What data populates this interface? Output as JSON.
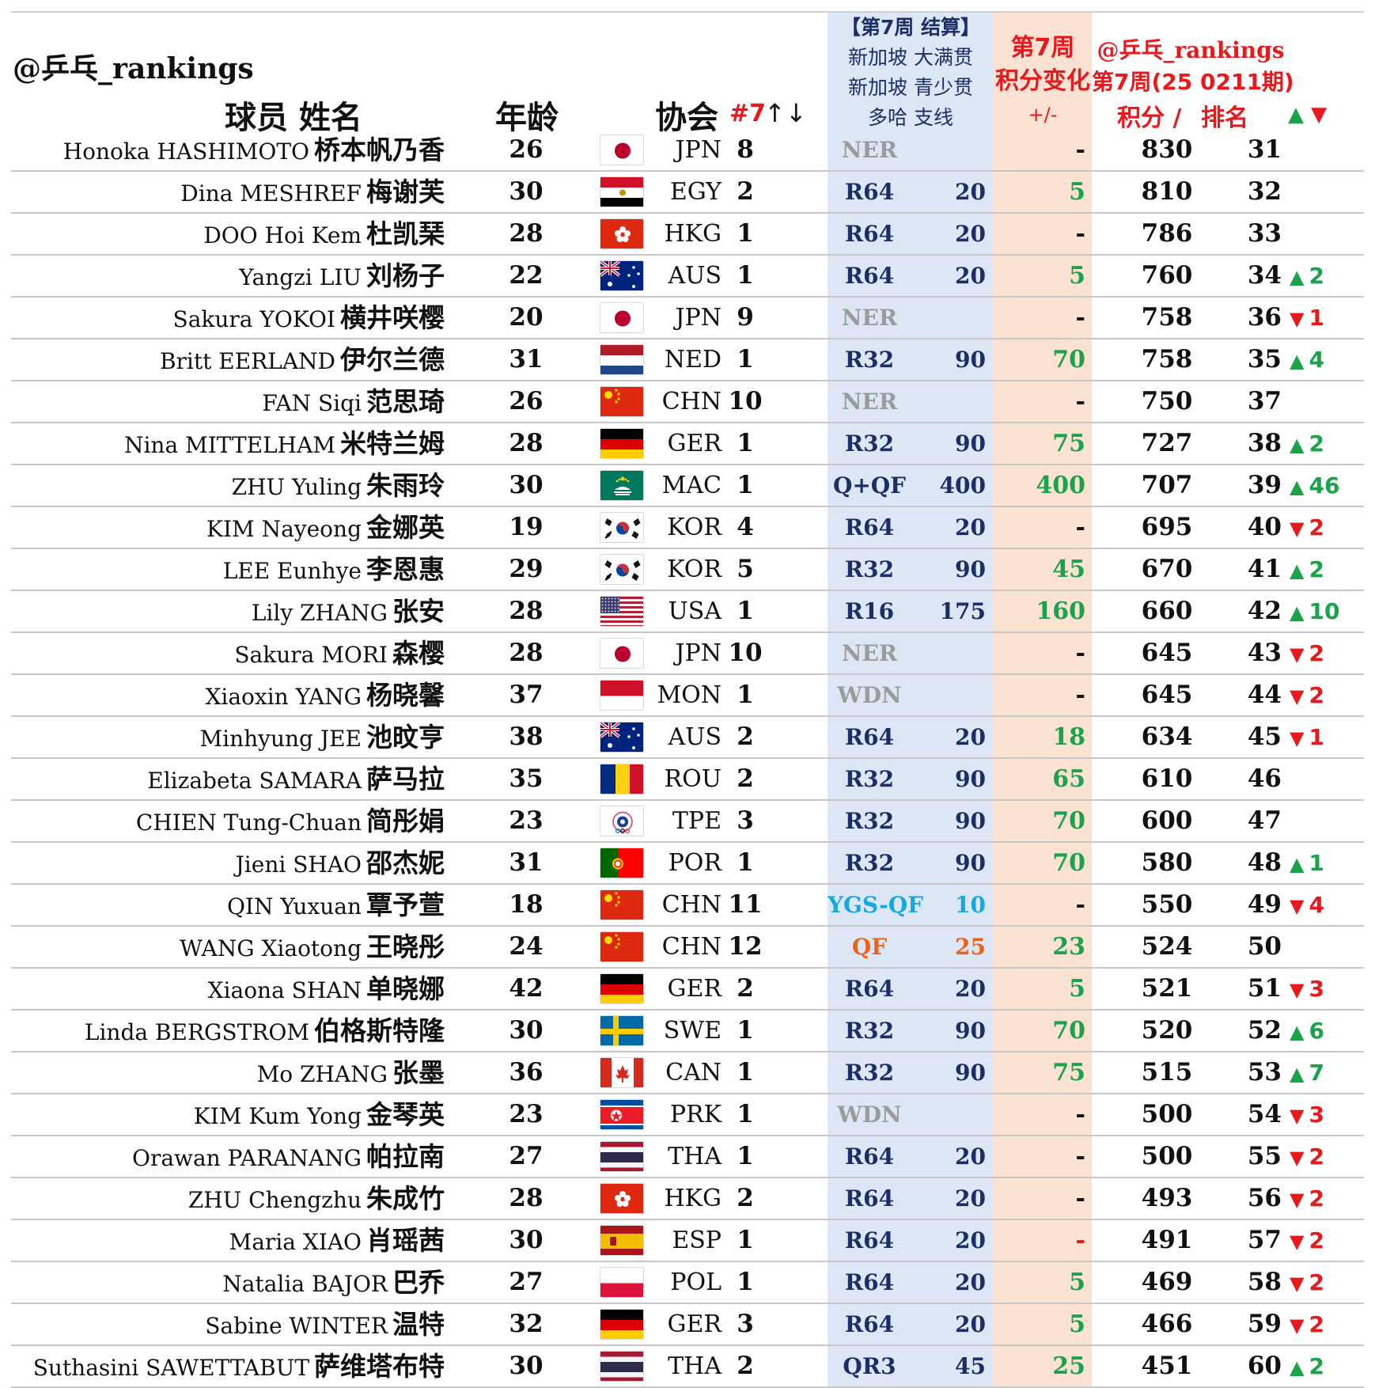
{
  "header": {
    "handle": "@乒乓_rankings",
    "player_col": "球员  姓名",
    "age_col": "年龄",
    "assoc_col": "协会",
    "assoc_rank_col": "#7",
    "assoc_rank_arrows": "↑↓",
    "event_line1": "【第7周 结算】",
    "event_line2": "新加坡 大满贯",
    "event_line3": "新加坡 青少贯",
    "event_line4": "多哈 支线",
    "change_line1": "第7周",
    "change_line2": "积分变化",
    "change_line3": "+/-",
    "rank_line1": "@乒乓_rankings",
    "rank_line2": "第7周(25 0211期)",
    "points_col": "积分 /",
    "rank_col": "排名",
    "up_symbol": "▲",
    "down_symbol": "▼"
  },
  "colors": {
    "up": "#1aa34a",
    "down": "#e8191c",
    "header_red": "#e8191c",
    "event_band": "#dde6f5",
    "change_band": "#fbe2d3"
  },
  "rows": [
    {
      "name_en": "Honoka HASHIMOTO",
      "name_zh": "桥本帆乃香",
      "age": "26",
      "flag": "JPN",
      "code": "JPN",
      "assoc_rank": "8",
      "round": "NER",
      "event_pts": "",
      "event_style": "grey",
      "change": "-",
      "change_style": "neutral",
      "points": "830",
      "rank": "31",
      "move_dir": "",
      "move": ""
    },
    {
      "name_en": "Dina MESHREF",
      "name_zh": "梅谢芙",
      "age": "30",
      "flag": "EGY",
      "code": "EGY",
      "assoc_rank": "2",
      "round": "R64",
      "event_pts": "20",
      "event_style": "normal",
      "change": "5",
      "change_style": "green",
      "points": "810",
      "rank": "32",
      "move_dir": "",
      "move": ""
    },
    {
      "name_en": "DOO Hoi Kem",
      "name_zh": "杜凯琹",
      "age": "28",
      "flag": "HKG",
      "code": "HKG",
      "assoc_rank": "1",
      "round": "R64",
      "event_pts": "20",
      "event_style": "normal",
      "change": "-",
      "change_style": "neutral",
      "points": "786",
      "rank": "33",
      "move_dir": "",
      "move": ""
    },
    {
      "name_en": "Yangzi LIU",
      "name_zh": "刘杨子",
      "age": "22",
      "flag": "AUS",
      "code": "AUS",
      "assoc_rank": "1",
      "round": "R64",
      "event_pts": "20",
      "event_style": "normal",
      "change": "5",
      "change_style": "green",
      "points": "760",
      "rank": "34",
      "move_dir": "up",
      "move": "2"
    },
    {
      "name_en": "Sakura YOKOI",
      "name_zh": "横井咲樱",
      "age": "20",
      "flag": "JPN",
      "code": "JPN",
      "assoc_rank": "9",
      "round": "NER",
      "event_pts": "",
      "event_style": "grey",
      "change": "-",
      "change_style": "neutral",
      "points": "758",
      "rank": "36",
      "move_dir": "down",
      "move": "1"
    },
    {
      "name_en": "Britt EERLAND",
      "name_zh": "伊尔兰德",
      "age": "31",
      "flag": "NED",
      "code": "NED",
      "assoc_rank": "1",
      "round": "R32",
      "event_pts": "90",
      "event_style": "normal",
      "change": "70",
      "change_style": "green",
      "points": "758",
      "rank": "35",
      "move_dir": "up",
      "move": "4"
    },
    {
      "name_en": "FAN Siqi",
      "name_zh": "范思琦",
      "age": "26",
      "flag": "CHN",
      "code": "CHN",
      "assoc_rank": "10",
      "round": "NER",
      "event_pts": "",
      "event_style": "grey",
      "change": "-",
      "change_style": "neutral",
      "points": "750",
      "rank": "37",
      "move_dir": "",
      "move": ""
    },
    {
      "name_en": "Nina MITTELHAM",
      "name_zh": "米特兰姆",
      "age": "28",
      "flag": "GER",
      "code": "GER",
      "assoc_rank": "1",
      "round": "R32",
      "event_pts": "90",
      "event_style": "normal",
      "change": "75",
      "change_style": "green",
      "points": "727",
      "rank": "38",
      "move_dir": "up",
      "move": "2"
    },
    {
      "name_en": "ZHU Yuling",
      "name_zh": "朱雨玲",
      "age": "30",
      "flag": "MAC",
      "code": "MAC",
      "assoc_rank": "1",
      "round": "Q+QF",
      "event_pts": "400",
      "event_style": "normal",
      "change": "400",
      "change_style": "green",
      "points": "707",
      "rank": "39",
      "move_dir": "up",
      "move": "46"
    },
    {
      "name_en": "KIM Nayeong",
      "name_zh": "金娜英",
      "age": "19",
      "flag": "KOR",
      "code": "KOR",
      "assoc_rank": "4",
      "round": "R64",
      "event_pts": "20",
      "event_style": "normal",
      "change": "-",
      "change_style": "neutral",
      "points": "695",
      "rank": "40",
      "move_dir": "down",
      "move": "2"
    },
    {
      "name_en": "LEE Eunhye",
      "name_zh": "李恩惠",
      "age": "29",
      "flag": "KOR",
      "code": "KOR",
      "assoc_rank": "5",
      "round": "R32",
      "event_pts": "90",
      "event_style": "normal",
      "change": "45",
      "change_style": "green",
      "points": "670",
      "rank": "41",
      "move_dir": "up",
      "move": "2"
    },
    {
      "name_en": "Lily ZHANG",
      "name_zh": "张安",
      "age": "28",
      "flag": "USA",
      "code": "USA",
      "assoc_rank": "1",
      "round": "R16",
      "event_pts": "175",
      "event_style": "normal",
      "change": "160",
      "change_style": "green",
      "points": "660",
      "rank": "42",
      "move_dir": "up",
      "move": "10"
    },
    {
      "name_en": "Sakura MORI",
      "name_zh": "森樱",
      "age": "28",
      "flag": "JPN",
      "code": "JPN",
      "assoc_rank": "10",
      "round": "NER",
      "event_pts": "",
      "event_style": "grey",
      "change": "-",
      "change_style": "neutral",
      "points": "645",
      "rank": "43",
      "move_dir": "down",
      "move": "2"
    },
    {
      "name_en": "Xiaoxin YANG",
      "name_zh": "杨晓馨",
      "age": "37",
      "flag": "MON",
      "code": "MON",
      "assoc_rank": "1",
      "round": "WDN",
      "event_pts": "",
      "event_style": "grey",
      "change": "-",
      "change_style": "neutral",
      "points": "645",
      "rank": "44",
      "move_dir": "down",
      "move": "2"
    },
    {
      "name_en": "Minhyung JEE",
      "name_zh": "池旼亨",
      "age": "38",
      "flag": "AUS",
      "code": "AUS",
      "assoc_rank": "2",
      "round": "R64",
      "event_pts": "20",
      "event_style": "normal",
      "change": "18",
      "change_style": "green",
      "points": "634",
      "rank": "45",
      "move_dir": "down",
      "move": "1"
    },
    {
      "name_en": "Elizabeta SAMARA",
      "name_zh": "萨马拉",
      "age": "35",
      "flag": "ROU",
      "code": "ROU",
      "assoc_rank": "2",
      "round": "R32",
      "event_pts": "90",
      "event_style": "normal",
      "change": "65",
      "change_style": "green",
      "points": "610",
      "rank": "46",
      "move_dir": "",
      "move": ""
    },
    {
      "name_en": "CHIEN Tung-Chuan",
      "name_zh": "简彤娟",
      "age": "23",
      "flag": "TPE",
      "code": "TPE",
      "assoc_rank": "3",
      "round": "R32",
      "event_pts": "90",
      "event_style": "normal",
      "change": "70",
      "change_style": "green",
      "points": "600",
      "rank": "47",
      "move_dir": "",
      "move": ""
    },
    {
      "name_en": "Jieni SHAO",
      "name_zh": "邵杰妮",
      "age": "31",
      "flag": "POR",
      "code": "POR",
      "assoc_rank": "1",
      "round": "R32",
      "event_pts": "90",
      "event_style": "normal",
      "change": "70",
      "change_style": "green",
      "points": "580",
      "rank": "48",
      "move_dir": "up",
      "move": "1"
    },
    {
      "name_en": "QIN Yuxuan",
      "name_zh": "覃予萱",
      "age": "18",
      "flag": "CHN",
      "code": "CHN",
      "assoc_rank": "11",
      "round": "YGS-QF",
      "event_pts": "10",
      "event_style": "cyan",
      "change": "-",
      "change_style": "neutral",
      "points": "550",
      "rank": "49",
      "move_dir": "down",
      "move": "4"
    },
    {
      "name_en": "WANG Xiaotong",
      "name_zh": "王晓彤",
      "age": "24",
      "flag": "CHN",
      "code": "CHN",
      "assoc_rank": "12",
      "round": "QF",
      "event_pts": "25",
      "event_style": "orange",
      "change": "23",
      "change_style": "green",
      "points": "524",
      "rank": "50",
      "move_dir": "",
      "move": ""
    },
    {
      "name_en": "Xiaona SHAN",
      "name_zh": "单晓娜",
      "age": "42",
      "flag": "GER",
      "code": "GER",
      "assoc_rank": "2",
      "round": "R64",
      "event_pts": "20",
      "event_style": "normal",
      "change": "5",
      "change_style": "green",
      "points": "521",
      "rank": "51",
      "move_dir": "down",
      "move": "3"
    },
    {
      "name_en": "Linda BERGSTROM",
      "name_zh": "伯格斯特隆",
      "age": "30",
      "flag": "SWE",
      "code": "SWE",
      "assoc_rank": "1",
      "round": "R32",
      "event_pts": "90",
      "event_style": "normal",
      "change": "70",
      "change_style": "green",
      "points": "520",
      "rank": "52",
      "move_dir": "up",
      "move": "6"
    },
    {
      "name_en": "Mo ZHANG",
      "name_zh": "张墨",
      "age": "36",
      "flag": "CAN",
      "code": "CAN",
      "assoc_rank": "1",
      "round": "R32",
      "event_pts": "90",
      "event_style": "normal",
      "change": "75",
      "change_style": "green",
      "points": "515",
      "rank": "53",
      "move_dir": "up",
      "move": "7"
    },
    {
      "name_en": "KIM Kum Yong",
      "name_zh": "金琴英",
      "age": "23",
      "flag": "PRK",
      "code": "PRK",
      "assoc_rank": "1",
      "round": "WDN",
      "event_pts": "",
      "event_style": "grey",
      "change": "-",
      "change_style": "neutral",
      "points": "500",
      "rank": "54",
      "move_dir": "down",
      "move": "3"
    },
    {
      "name_en": "Orawan PARANANG",
      "name_zh": "帕拉南",
      "age": "27",
      "flag": "THA",
      "code": "THA",
      "assoc_rank": "1",
      "round": "R64",
      "event_pts": "20",
      "event_style": "normal",
      "change": "-",
      "change_style": "neutral",
      "points": "500",
      "rank": "55",
      "move_dir": "down",
      "move": "2"
    },
    {
      "name_en": "ZHU Chengzhu",
      "name_zh": "朱成竹",
      "age": "28",
      "flag": "HKG",
      "code": "HKG",
      "assoc_rank": "2",
      "round": "R64",
      "event_pts": "20",
      "event_style": "normal",
      "change": "-",
      "change_style": "neutral",
      "points": "493",
      "rank": "56",
      "move_dir": "down",
      "move": "2"
    },
    {
      "name_en": "Maria XIAO",
      "name_zh": "肖瑶茜",
      "age": "30",
      "flag": "ESP",
      "code": "ESP",
      "assoc_rank": "1",
      "round": "R64",
      "event_pts": "20",
      "event_style": "normal",
      "change": "-",
      "change_style": "red",
      "points": "491",
      "rank": "57",
      "move_dir": "down",
      "move": "2"
    },
    {
      "name_en": "Natalia BAJOR",
      "name_zh": "巴乔",
      "age": "27",
      "flag": "POL",
      "code": "POL",
      "assoc_rank": "1",
      "round": "R64",
      "event_pts": "20",
      "event_style": "normal",
      "change": "5",
      "change_style": "green",
      "points": "469",
      "rank": "58",
      "move_dir": "down",
      "move": "2"
    },
    {
      "name_en": "Sabine WINTER",
      "name_zh": "温特",
      "age": "32",
      "flag": "GER",
      "code": "GER",
      "assoc_rank": "3",
      "round": "R64",
      "event_pts": "20",
      "event_style": "normal",
      "change": "5",
      "change_style": "green",
      "points": "466",
      "rank": "59",
      "move_dir": "down",
      "move": "2"
    },
    {
      "name_en": "Suthasini SAWETTABUT",
      "name_zh": "萨维塔布特",
      "age": "30",
      "flag": "THA",
      "code": "THA",
      "assoc_rank": "2",
      "round": "QR3",
      "event_pts": "45",
      "event_style": "normal",
      "change": "25",
      "change_style": "green",
      "points": "451",
      "rank": "60",
      "move_dir": "up",
      "move": "2"
    }
  ]
}
